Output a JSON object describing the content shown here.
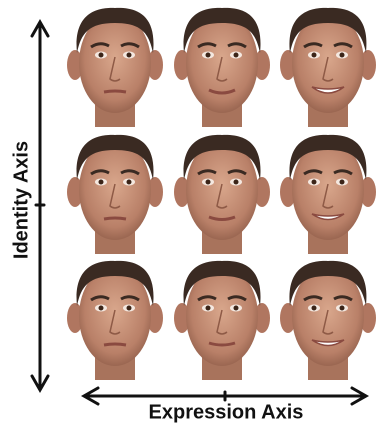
{
  "axes": {
    "vertical": "Identity Axis",
    "horizontal": "Expression Axis"
  }
}
